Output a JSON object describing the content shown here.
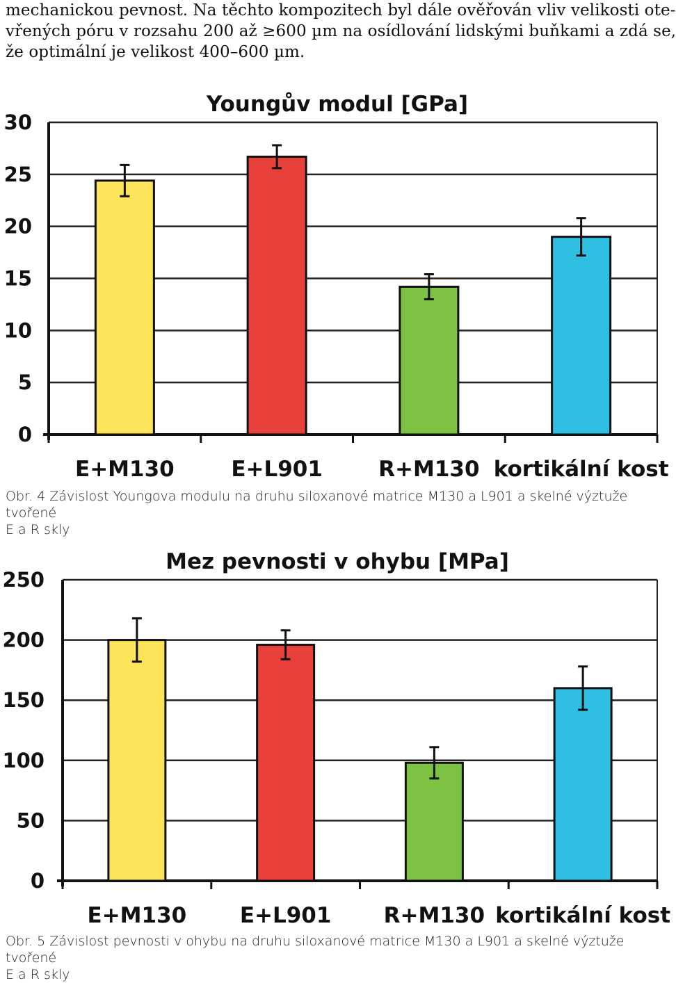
{
  "intro_lines": [
    "mechanickou pevnost. Na těchto kompozitech byl dále ověřován vliv velikosti ote-",
    "vřených póru v rozsahu 200 až ≥600 µm na osídlování lidskými buňkami a zdá se,",
    "že optimální je velikost 400–600 µm."
  ],
  "captions": [
    {
      "lead": "Obr. 4",
      "line1": "Závislost Youngova modulu na druhu siloxanové matrice M130 a L901 a skelné výztuže tvořené",
      "line2": "E a R skly"
    },
    {
      "lead": "Obr. 5",
      "line1": "Závislost pevnosti v ohybu na druhu siloxanové matrice M130 a L901 a skelné výztuže tvořené",
      "line2": "E a R skly"
    }
  ],
  "chart_data": [
    {
      "type": "bar",
      "title": "Youngův modul [GPa]",
      "categories": [
        "E+M130",
        "E+L901",
        "R+M130",
        "kortikální kost"
      ],
      "values": [
        24.4,
        26.7,
        14.2,
        19.0
      ],
      "errors": [
        1.5,
        1.1,
        1.2,
        1.8
      ],
      "colors": [
        "#fde45a",
        "#e8403a",
        "#7dc242",
        "#2fbfe3"
      ],
      "yticks": [
        0,
        5,
        10,
        15,
        20,
        25,
        30
      ],
      "ylim": [
        0,
        30
      ],
      "grid": true,
      "xlabel": "",
      "ylabel": ""
    },
    {
      "type": "bar",
      "title": "Mez pevnosti v ohybu [MPa]",
      "categories": [
        "E+M130",
        "E+L901",
        "R+M130",
        "kortikální kost"
      ],
      "values": [
        200,
        196,
        98,
        160
      ],
      "errors": [
        18,
        12,
        13,
        18
      ],
      "colors": [
        "#fde45a",
        "#e8403a",
        "#7dc242",
        "#2fbfe3"
      ],
      "yticks": [
        0,
        50,
        100,
        150,
        200,
        250
      ],
      "ylim": [
        0,
        250
      ],
      "grid": true,
      "xlabel": "",
      "ylabel": ""
    }
  ]
}
